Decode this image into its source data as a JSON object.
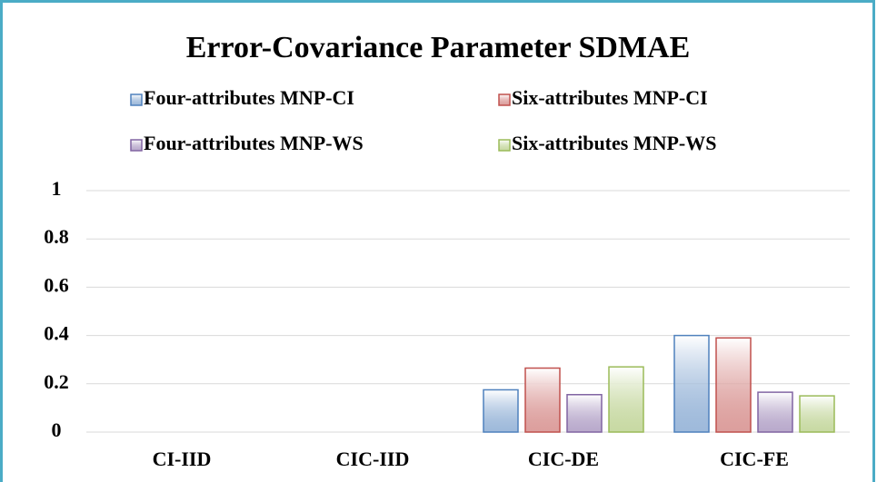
{
  "chart_data": {
    "type": "bar",
    "title": "Error-Covariance Parameter SDMAE",
    "categories": [
      "CI-IID",
      "CIC-IID",
      "CIC-DE",
      "CIC-FE"
    ],
    "series": [
      {
        "name": "Four-attributes MNP-CI",
        "color": "#4f81bd",
        "values": [
          null,
          null,
          0.175,
          0.4
        ]
      },
      {
        "name": "Six-attributes MNP-CI",
        "color": "#c0504d",
        "values": [
          null,
          null,
          0.265,
          0.39
        ]
      },
      {
        "name": "Four-attributes MNP-WS",
        "color": "#8064a2",
        "values": [
          null,
          null,
          0.155,
          0.165
        ]
      },
      {
        "name": "Six-attributes MNP-WS",
        "color": "#9bbb59",
        "values": [
          null,
          null,
          0.27,
          0.15
        ]
      }
    ],
    "ylim": [
      0,
      1
    ],
    "yticks": [
      0,
      0.2,
      0.4,
      0.6,
      0.8,
      1
    ],
    "grid": true
  }
}
